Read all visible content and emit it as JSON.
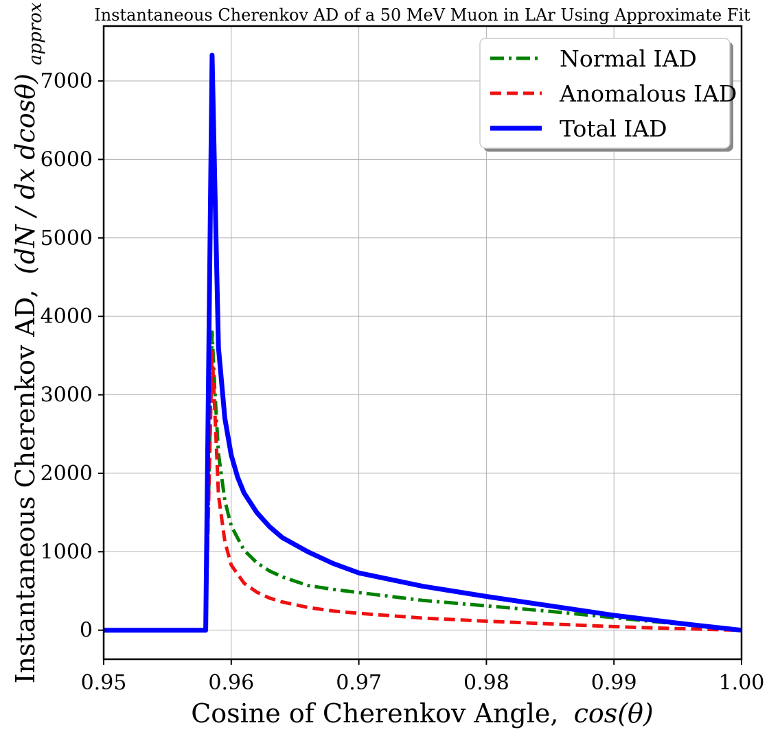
{
  "chart_data": {
    "type": "line",
    "title": "Instantaneous Cherenkov AD of a 50 MeV Muon in LAr Using Approximate Fit",
    "xlabel": "Cosine of Cherenkov Angle,",
    "xlabel_math": "cos(θ)",
    "ylabel": "Instantaneous Cherenkov AD,",
    "ylabel_math": "(dN / dx dcosθ)",
    "ylabel_math_sub": "approx",
    "xlim": [
      0.95,
      1.0
    ],
    "ylim": [
      -370,
      7700
    ],
    "xticks": [
      0.95,
      0.96,
      0.97,
      0.98,
      0.99,
      1.0
    ],
    "xtick_labels": [
      "0.95",
      "0.96",
      "0.97",
      "0.98",
      "0.99",
      "1.00"
    ],
    "yticks": [
      0,
      1000,
      2000,
      3000,
      4000,
      5000,
      6000,
      7000
    ],
    "ytick_labels": [
      "0",
      "1000",
      "2000",
      "3000",
      "4000",
      "5000",
      "6000",
      "7000"
    ],
    "grid": true,
    "legend_position": "top-right",
    "series": [
      {
        "name": "Normal IAD",
        "color": "#008000",
        "style": "dashdot",
        "x": [
          0.95,
          0.958,
          0.9585,
          0.9587,
          0.959,
          0.9595,
          0.96,
          0.961,
          0.962,
          0.963,
          0.964,
          0.966,
          0.968,
          0.97,
          0.975,
          0.98,
          0.985,
          0.99,
          0.995,
          1.0
        ],
        "y": [
          0,
          0,
          3800,
          3100,
          2250,
          1650,
          1330,
          1020,
          860,
          755,
          680,
          570,
          520,
          480,
          380,
          310,
          240,
          160,
          80,
          0
        ]
      },
      {
        "name": "Anomalous IAD",
        "color": "#ee1111",
        "style": "dashed",
        "x": [
          0.95,
          0.958,
          0.9585,
          0.9587,
          0.959,
          0.9595,
          0.96,
          0.961,
          0.962,
          0.963,
          0.964,
          0.966,
          0.968,
          0.97,
          0.975,
          0.98,
          0.985,
          0.99,
          0.995,
          1.0
        ],
        "y": [
          0,
          0,
          3550,
          2850,
          1720,
          1130,
          830,
          600,
          485,
          410,
          360,
          290,
          245,
          215,
          155,
          115,
          80,
          45,
          20,
          0
        ]
      },
      {
        "name": "Total IAD",
        "color": "#0000ff",
        "style": "solid",
        "x": [
          0.95,
          0.958,
          0.9585,
          0.9587,
          0.959,
          0.9595,
          0.96,
          0.9605,
          0.961,
          0.962,
          0.963,
          0.964,
          0.966,
          0.968,
          0.97,
          0.975,
          0.98,
          0.985,
          0.99,
          0.995,
          1.0
        ],
        "y": [
          0,
          0,
          7330,
          5800,
          3600,
          2700,
          2230,
          1950,
          1750,
          1500,
          1320,
          1180,
          1000,
          850,
          730,
          560,
          430,
          310,
          190,
          90,
          0
        ]
      }
    ]
  }
}
